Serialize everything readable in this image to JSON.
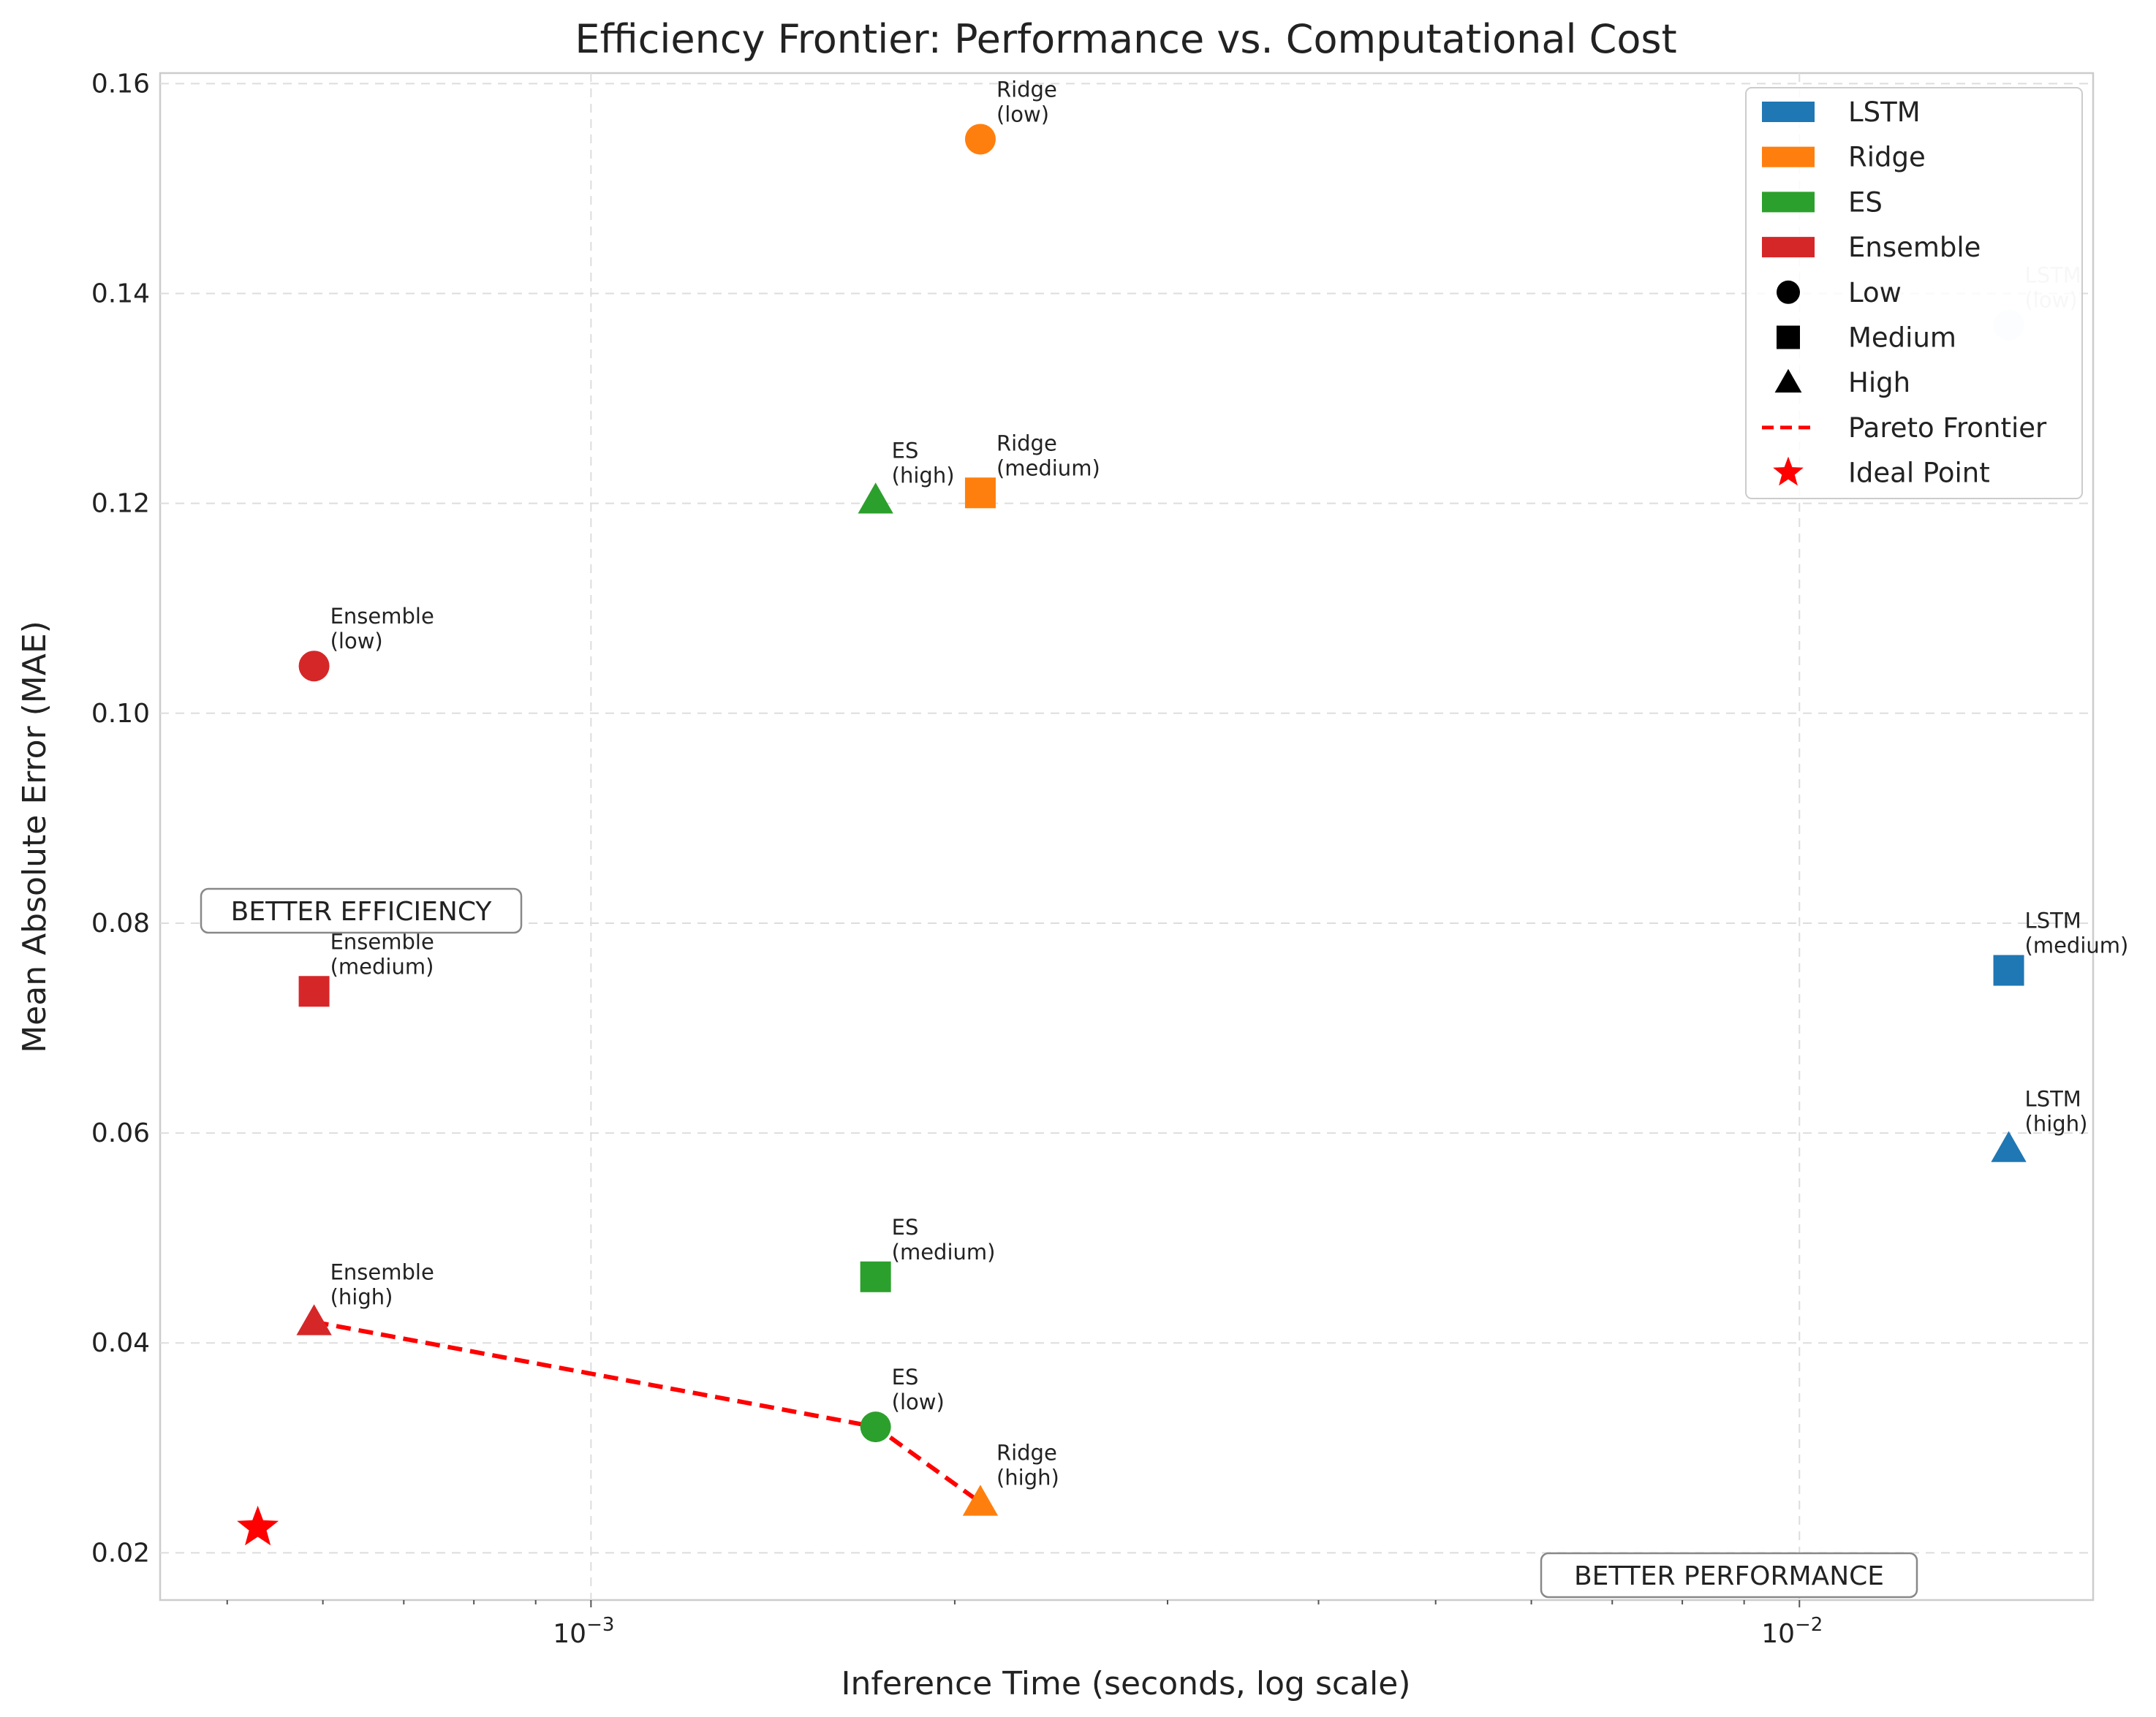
{
  "chart_data": {
    "type": "scatter",
    "title": "Efficiency Frontier: Performance vs. Computational Cost",
    "xlabel": "Inference Time (seconds, log scale)",
    "ylabel": "Mean Absolute Error (MAE)",
    "xscale": "log",
    "xlim": [
      0.00044,
      0.0175
    ],
    "ylim": [
      0.0155,
      0.161
    ],
    "grid": true,
    "legend_position": "top-right",
    "x_ticks": [
      {
        "value": 0.001,
        "base": "10",
        "exp": "−3"
      },
      {
        "value": 0.01,
        "base": "10",
        "exp": "−2"
      }
    ],
    "y_ticks": [
      "0.02",
      "0.04",
      "0.06",
      "0.08",
      "0.10",
      "0.12",
      "0.14",
      "0.16"
    ],
    "series_colors": {
      "LSTM": "#1f77b4",
      "Ridge": "#ff7f0e",
      "ES": "#2ca02c",
      "Ensemble": "#d62728"
    },
    "points": [
      {
        "model": "LSTM",
        "complexity": "low",
        "marker": "circle",
        "x": 0.0149,
        "y": 0.137,
        "label_line1": "LSTM",
        "label_line2": "(low)",
        "faded": true
      },
      {
        "model": "LSTM",
        "complexity": "medium",
        "marker": "square",
        "x": 0.0149,
        "y": 0.0755,
        "label_line1": "LSTM",
        "label_line2": "(medium)"
      },
      {
        "model": "LSTM",
        "complexity": "high",
        "marker": "triangle",
        "x": 0.0149,
        "y": 0.0585,
        "label_line1": "LSTM",
        "label_line2": "(high)"
      },
      {
        "model": "Ridge",
        "complexity": "low",
        "marker": "circle",
        "x": 0.0021,
        "y": 0.1547,
        "label_line1": "Ridge",
        "label_line2": "(low)"
      },
      {
        "model": "Ridge",
        "complexity": "medium",
        "marker": "square",
        "x": 0.0021,
        "y": 0.121,
        "label_line1": "Ridge",
        "label_line2": "(medium)"
      },
      {
        "model": "Ridge",
        "complexity": "high",
        "marker": "triangle",
        "x": 0.0021,
        "y": 0.0248,
        "label_line1": "Ridge",
        "label_line2": "(high)"
      },
      {
        "model": "ES",
        "complexity": "low",
        "marker": "circle",
        "x": 0.00172,
        "y": 0.032,
        "label_line1": "ES",
        "label_line2": "(low)"
      },
      {
        "model": "ES",
        "complexity": "medium",
        "marker": "square",
        "x": 0.00172,
        "y": 0.0463,
        "label_line1": "ES",
        "label_line2": "(medium)"
      },
      {
        "model": "ES",
        "complexity": "high",
        "marker": "triangle",
        "x": 0.00172,
        "y": 0.1203,
        "label_line1": "ES",
        "label_line2": "(high)"
      },
      {
        "model": "Ensemble",
        "complexity": "low",
        "marker": "circle",
        "x": 0.00059,
        "y": 0.1045,
        "label_line1": "Ensemble",
        "label_line2": "(low)"
      },
      {
        "model": "Ensemble",
        "complexity": "medium",
        "marker": "square",
        "x": 0.00059,
        "y": 0.0735,
        "label_line1": "Ensemble",
        "label_line2": "(medium)"
      },
      {
        "model": "Ensemble",
        "complexity": "high",
        "marker": "triangle",
        "x": 0.00059,
        "y": 0.042,
        "label_line1": "Ensemble",
        "label_line2": "(high)"
      }
    ],
    "pareto_frontier": {
      "color": "#ff0000",
      "points": [
        [
          0.00059,
          0.042
        ],
        [
          0.00172,
          0.032
        ],
        [
          0.0021,
          0.0248
        ]
      ]
    },
    "ideal_point": {
      "x": 0.00053,
      "y": 0.0224,
      "color": "#ff0000"
    },
    "legend": [
      {
        "label": "LSTM",
        "kind": "patch",
        "color": "#1f77b4"
      },
      {
        "label": "Ridge",
        "kind": "patch",
        "color": "#ff7f0e"
      },
      {
        "label": "ES",
        "kind": "patch",
        "color": "#2ca02c"
      },
      {
        "label": "Ensemble",
        "kind": "patch",
        "color": "#d62728"
      },
      {
        "label": "Low",
        "kind": "circle",
        "color": "#000000"
      },
      {
        "label": "Medium",
        "kind": "square",
        "color": "#000000"
      },
      {
        "label": "High",
        "kind": "triangle",
        "color": "#000000"
      },
      {
        "label": "Pareto Frontier",
        "kind": "dash",
        "color": "#ff0000"
      },
      {
        "label": "Ideal Point",
        "kind": "star",
        "color": "#ff0000"
      }
    ],
    "annotations": [
      {
        "text": "BETTER EFFICIENCY",
        "anchor": "left-middle"
      },
      {
        "text": "BETTER PERFORMANCE",
        "anchor": "bottom-right"
      }
    ]
  }
}
